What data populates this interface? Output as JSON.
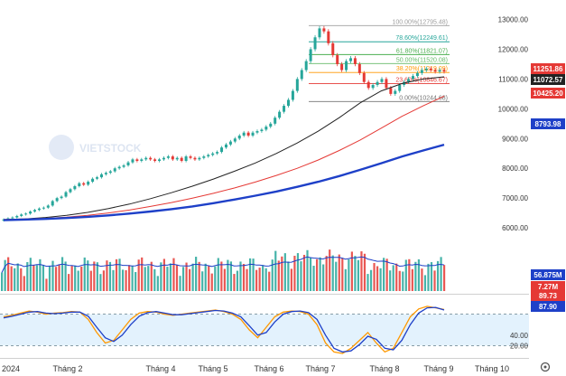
{
  "chart_data": {
    "type": "candlestick",
    "watermark": "VIETSTOCK",
    "x_axis": {
      "year_label": "2024",
      "month_labels": [
        "Tháng 2",
        "Tháng 4",
        "Tháng 5",
        "Tháng 6",
        "Tháng 7",
        "Tháng 8",
        "Tháng 9",
        "Tháng 10"
      ]
    },
    "price_panel": {
      "y_ticks": [
        6000,
        7000,
        8000,
        9000,
        10000,
        11000,
        12000,
        13000
      ],
      "ylim": [
        5700,
        13350
      ],
      "candles_approx": [
        6280,
        6320,
        6350,
        6400,
        6450,
        6480,
        6550,
        6600,
        6650,
        6680,
        6750,
        6900,
        7000,
        7050,
        7200,
        7300,
        7400,
        7500,
        7450,
        7550,
        7650,
        7700,
        7800,
        7850,
        7900,
        8000,
        8050,
        8100,
        8200,
        8300,
        8250,
        8300,
        8350,
        8300,
        8250,
        8300,
        8350,
        8400,
        8300,
        8350,
        8250,
        8400,
        8350,
        8300,
        8350,
        8400,
        8450,
        8500,
        8550,
        8700,
        8800,
        8900,
        9000,
        9100,
        9200,
        9100,
        9200,
        9250,
        9300,
        9400,
        9500,
        9700,
        9900,
        10100,
        10300,
        10600,
        11000,
        11300,
        11600,
        12000,
        12400,
        12700,
        12600,
        12200,
        11800,
        11500,
        11300,
        11600,
        11700,
        11500,
        11200,
        10900,
        10700,
        10800,
        10900,
        11000,
        10700,
        10500,
        10600,
        10800,
        10900,
        11000,
        11100,
        11200,
        11300,
        11350,
        11300,
        11250,
        11300,
        11250
      ],
      "fibonacci_levels": [
        {
          "label": "100.00%(12795.48)",
          "value": 12795.48,
          "color": "#9e9e9e"
        },
        {
          "label": "78.60%(12249.61)",
          "value": 12249.61,
          "color": "#26a69a"
        },
        {
          "label": "61.80%(11821.07)",
          "value": 11821.07,
          "color": "#4caf50"
        },
        {
          "label": "50.00%(11520.08)",
          "value": 11520.08,
          "color": "#66bb6a"
        },
        {
          "label": "38.20%(11219.09)",
          "value": 11219.09,
          "color": "#ff9800"
        },
        {
          "label": "23.60%(10846.67)",
          "value": 10846.67,
          "color": "#e53935"
        },
        {
          "label": "0.00%(10244.68)",
          "value": 10244.68,
          "color": "#757575"
        }
      ],
      "moving_averages": [
        {
          "color": "#222222",
          "values": [
            6280,
            6300,
            6350,
            6420,
            6520,
            6650,
            6800,
            6980,
            7180,
            7400,
            7640,
            7900,
            8180,
            8500,
            8850,
            9250,
            9700,
            10200,
            10600,
            10850,
            11000,
            11072
          ]
        },
        {
          "color": "#e53935",
          "values": [
            6280,
            6300,
            6320,
            6360,
            6420,
            6500,
            6600,
            6720,
            6850,
            7000,
            7160,
            7340,
            7540,
            7760,
            8000,
            8280,
            8600,
            8950,
            9350,
            9750,
            10100,
            10425
          ]
        },
        {
          "color": "#1e40c8",
          "values": [
            6260,
            6280,
            6300,
            6330,
            6370,
            6420,
            6480,
            6550,
            6630,
            6720,
            6830,
            6950,
            7080,
            7220,
            7380,
            7550,
            7740,
            7950,
            8170,
            8400,
            8600,
            8794
          ]
        }
      ],
      "price_badges": [
        {
          "text": "11251.86",
          "value": 11251.86,
          "bg": "#e53935",
          "fg": "#ffffff"
        },
        {
          "text": "11072.57",
          "value": 11072.57,
          "bg": "#222222",
          "fg": "#ffffff"
        },
        {
          "text": "10425.20",
          "value": 10425.2,
          "bg": "#e53935",
          "fg": "#ffffff"
        },
        {
          "text": "8793.98",
          "value": 8793.98,
          "bg": "#1e40c8",
          "fg": "#ffffff"
        }
      ]
    },
    "volume_panel": {
      "badges": [
        {
          "text": "56.875M",
          "bg": "#1e40c8",
          "fg": "#ffffff"
        },
        {
          "text": "7.27M",
          "bg": "#e53935",
          "fg": "#ffffff"
        }
      ]
    },
    "stochastic_panel": {
      "y_ticks": [
        40.0,
        20.0
      ],
      "ylim": [
        0,
        100
      ],
      "upper_band": 80,
      "lower_band": 20,
      "k_values": [
        75,
        78,
        82,
        86,
        84,
        80,
        82,
        83,
        85,
        84,
        70,
        45,
        25,
        30,
        50,
        70,
        82,
        85,
        84,
        80,
        78,
        80,
        82,
        84,
        86,
        88,
        85,
        80,
        70,
        50,
        35,
        55,
        75,
        84,
        86,
        85,
        80,
        60,
        25,
        8,
        5,
        15,
        30,
        45,
        25,
        8,
        15,
        45,
        75,
        90,
        95,
        92,
        89
      ],
      "d_values": [
        73,
        76,
        80,
        84,
        85,
        82,
        81,
        82,
        84,
        84,
        76,
        55,
        35,
        28,
        40,
        60,
        76,
        83,
        85,
        82,
        79,
        79,
        81,
        83,
        85,
        87,
        86,
        82,
        75,
        58,
        40,
        45,
        65,
        80,
        85,
        86,
        83,
        70,
        40,
        15,
        8,
        10,
        22,
        38,
        32,
        15,
        12,
        30,
        60,
        82,
        92,
        93,
        88
      ],
      "badges": [
        {
          "text": "89.73",
          "bg": "#e53935",
          "fg": "#ffffff"
        },
        {
          "text": "87.90",
          "bg": "#1e40c8",
          "fg": "#ffffff"
        }
      ]
    }
  }
}
